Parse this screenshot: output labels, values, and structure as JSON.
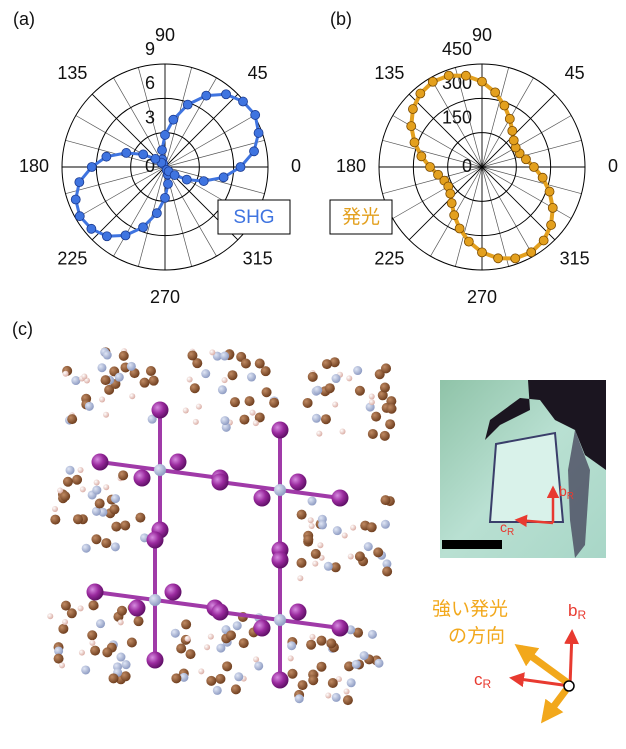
{
  "chart_data": [
    {
      "type": "polar",
      "panel_label": "(a)",
      "theta": [
        0,
        10,
        20,
        30,
        40,
        50,
        60,
        70,
        80,
        90,
        100,
        110,
        120,
        130,
        140,
        150,
        160,
        170,
        180,
        190,
        200,
        210,
        220,
        230,
        240,
        250,
        260,
        270,
        280,
        290,
        300,
        310,
        320,
        330,
        340,
        350
      ],
      "series": [
        {
          "name": "SHG",
          "color": "#3f74e0",
          "values": [
            6.6,
            7.9,
            8.7,
            9.1,
            8.9,
            8.3,
            7.2,
            5.8,
            4.2,
            2.8,
            1.5,
            0.7,
            0.3,
            0.5,
            1.1,
            2.2,
            3.6,
            5.2,
            6.4,
            7.6,
            8.3,
            8.6,
            8.4,
            7.9,
            6.9,
            5.6,
            4.1,
            2.7,
            1.5,
            0.7,
            0.3,
            0.5,
            1.1,
            2.2,
            3.6,
            5.2
          ]
        }
      ],
      "ylim": [
        0,
        9
      ],
      "yticks": [
        0,
        3,
        6,
        9
      ],
      "thetaticks": [
        0,
        45,
        90,
        135,
        180,
        225,
        270,
        315
      ]
    },
    {
      "type": "polar",
      "panel_label": "(b)",
      "theta": [
        0,
        10,
        20,
        30,
        40,
        50,
        60,
        70,
        80,
        90,
        100,
        110,
        120,
        130,
        140,
        150,
        160,
        170,
        180,
        190,
        200,
        210,
        220,
        230,
        240,
        250,
        260,
        270,
        280,
        290,
        300,
        310,
        320,
        330,
        340,
        350
      ],
      "series": [
        {
          "name": "発光",
          "color": "#e3a01e",
          "values": [
            227,
            195,
            175,
            170,
            181,
            206,
            243,
            286,
            331,
            373,
            405,
            425,
            430,
            419,
            394,
            357,
            314,
            269,
            227,
            195,
            175,
            170,
            181,
            206,
            243,
            286,
            331,
            373,
            405,
            425,
            430,
            419,
            394,
            357,
            314,
            269
          ]
        }
      ],
      "ylim": [
        0,
        450
      ],
      "yticks": [
        0,
        150,
        300,
        450
      ],
      "thetaticks": [
        0,
        45,
        90,
        135,
        180,
        225,
        270,
        315
      ]
    }
  ],
  "panel_c": {
    "label": "(c)",
    "micrograph": {
      "b_label": "b",
      "b_sub": "R",
      "c_label": "c",
      "c_sub": "R"
    },
    "direction_text": [
      "強い発光",
      "の方向"
    ],
    "axes": {
      "b_label": "b",
      "b_sub": "R",
      "c_label": "c",
      "c_sub": "R"
    }
  }
}
